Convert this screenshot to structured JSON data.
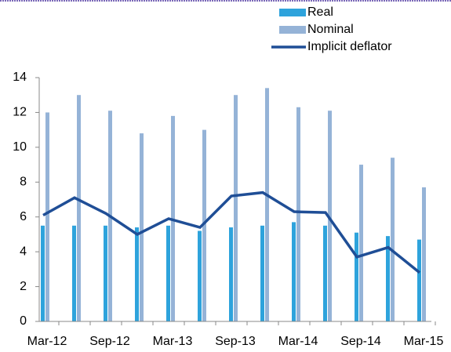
{
  "chart_data": {
    "type": "bar_line",
    "categories": [
      "Mar-12",
      null,
      "Sep-12",
      null,
      "Mar-13",
      null,
      "Sep-13",
      null,
      "Mar-14",
      null,
      "Sep-14",
      null,
      "Mar-15"
    ],
    "series": [
      {
        "name": "Real",
        "color": "#2ea3dc",
        "type": "bar",
        "values": [
          5.5,
          5.5,
          5.5,
          5.4,
          5.5,
          5.2,
          5.4,
          5.5,
          5.7,
          5.5,
          5.1,
          4.9,
          4.7
        ]
      },
      {
        "name": "Nominal",
        "color": "#95b3d7",
        "type": "bar",
        "values": [
          12,
          13,
          12.1,
          10.8,
          11.8,
          11,
          13,
          13.4,
          12.3,
          12.1,
          9,
          9.4,
          7.7
        ]
      },
      {
        "name": "Implicit deflator",
        "color": "#1f4e96",
        "type": "line",
        "values": [
          6.1,
          7.1,
          6.2,
          5.0,
          5.9,
          5.4,
          7.2,
          7.4,
          6.3,
          6.25,
          3.7,
          4.25,
          2.8
        ]
      }
    ],
    "ylim": [
      0,
      14
    ],
    "yticks": [
      0,
      2,
      4,
      6,
      8,
      10,
      12,
      14
    ],
    "legend": "top-right",
    "grid": false
  }
}
